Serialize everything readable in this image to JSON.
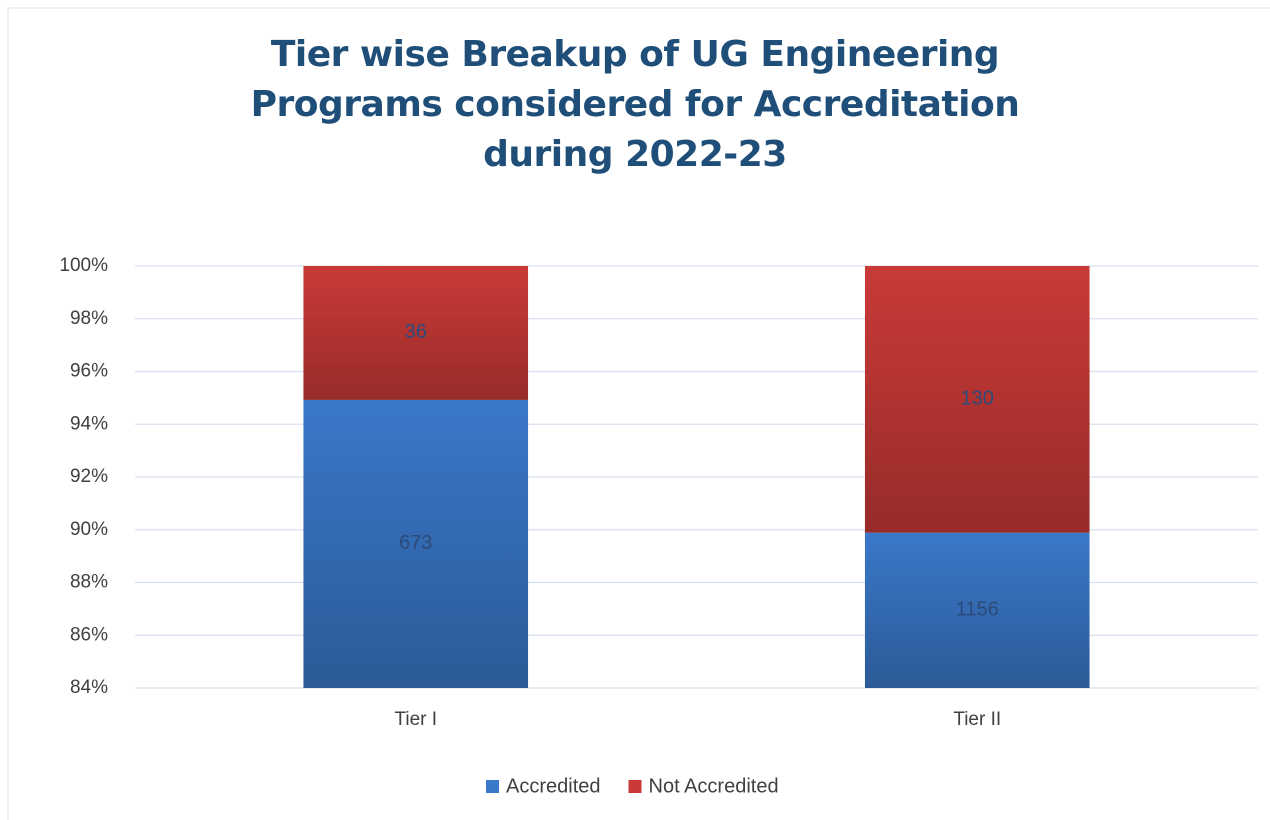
{
  "chart_data": {
    "type": "bar",
    "stacking": "percent",
    "title": "Tier wise Breakup of  UG Engineering Programs considered for Accreditation during 2022-23",
    "categories": [
      "Tier I",
      "Tier II"
    ],
    "series": [
      {
        "name": "Accredited",
        "color": "#3a78c9",
        "values": [
          673,
          1156
        ]
      },
      {
        "name": "Not Accredited",
        "color": "#c93a37",
        "values": [
          36,
          130
        ]
      }
    ],
    "ylim": [
      84,
      100
    ],
    "yticks": [
      {
        "value": 84,
        "label": "84%"
      },
      {
        "value": 86,
        "label": "86%"
      },
      {
        "value": 88,
        "label": "88%"
      },
      {
        "value": 90,
        "label": "90%"
      },
      {
        "value": 92,
        "label": "92%"
      },
      {
        "value": 94,
        "label": "94%"
      },
      {
        "value": 96,
        "label": "96%"
      },
      {
        "value": 98,
        "label": "98%"
      },
      {
        "value": 100,
        "label": "100%"
      }
    ],
    "grid": true,
    "legend": "bottom"
  }
}
